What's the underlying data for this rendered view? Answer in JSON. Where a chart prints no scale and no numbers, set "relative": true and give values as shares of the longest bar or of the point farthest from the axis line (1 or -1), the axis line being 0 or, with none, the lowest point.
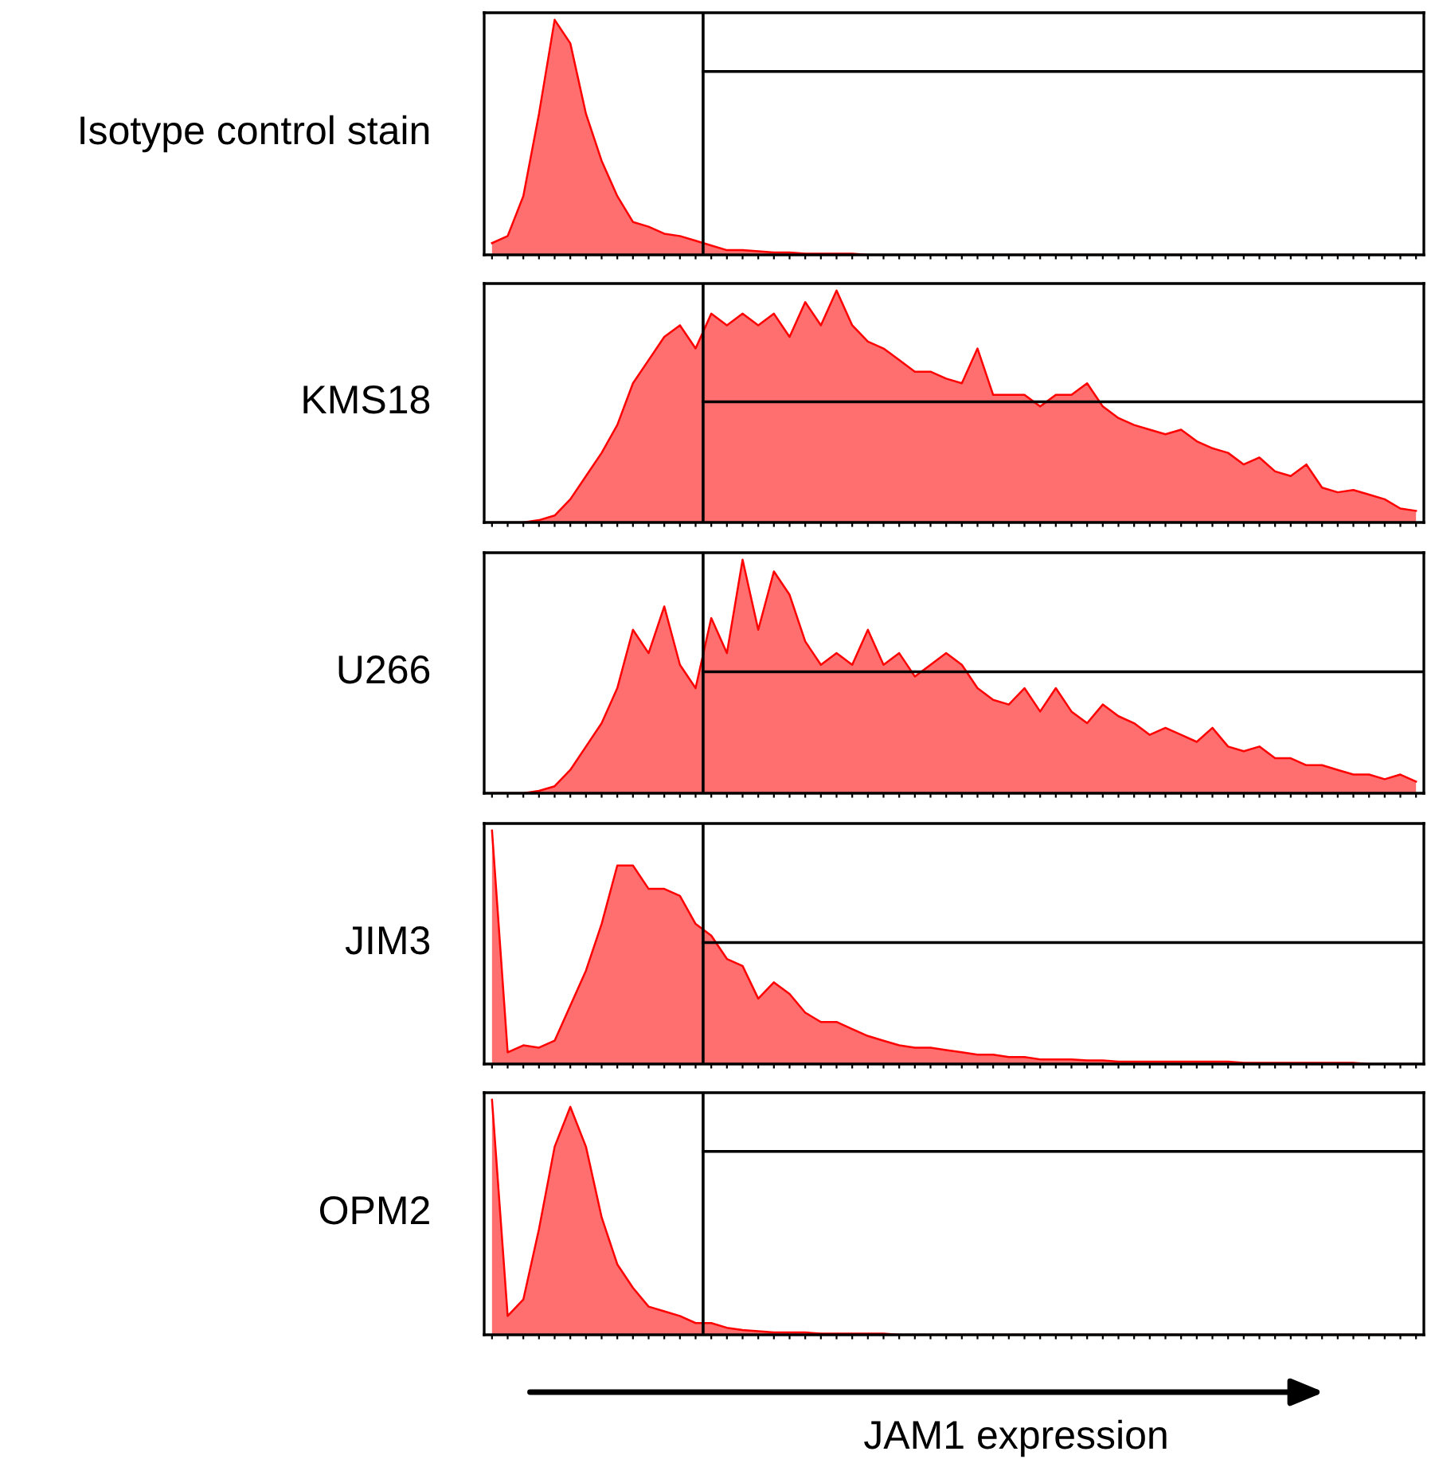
{
  "chart_data": [
    {
      "type": "area",
      "ylabel": "Isotype control stain",
      "relative": true,
      "grid": false,
      "legend": false,
      "ref_lines": [
        {
          "axis": "y",
          "value": 0.78,
          "color": "#000000"
        }
      ],
      "categories": [
        null,
        null,
        null,
        null,
        null,
        null,
        null,
        null,
        null,
        null,
        null,
        null,
        null,
        null,
        null,
        null,
        null,
        null,
        null,
        null,
        null,
        null,
        null,
        null,
        null,
        null,
        null,
        null,
        null,
        null,
        null,
        null,
        null,
        null,
        null,
        null,
        null,
        null,
        null,
        null,
        null,
        null,
        null,
        null,
        null,
        null,
        null,
        null,
        null,
        null,
        null,
        null,
        null,
        null,
        null,
        null,
        null,
        null,
        null,
        null
      ],
      "series": [
        {
          "color": "#ff6f6f",
          "values": [
            0.05,
            0.08,
            0.25,
            0.6,
            1.0,
            0.9,
            0.6,
            0.4,
            0.25,
            0.14,
            0.12,
            0.09,
            0.08,
            0.06,
            0.04,
            0.02,
            0.02,
            0.015,
            0.01,
            0.01,
            0.005,
            0.005,
            0.005,
            0.005,
            0,
            0,
            0,
            0,
            0,
            0,
            0,
            0,
            0,
            0,
            0,
            0,
            0,
            0,
            0,
            0,
            0,
            0,
            0,
            0,
            0,
            0,
            0,
            0,
            0,
            0,
            0,
            0,
            0,
            0,
            0,
            0,
            0,
            0,
            0,
            0
          ]
        }
      ]
    },
    {
      "type": "area",
      "ylabel": "KMS18",
      "relative": true,
      "grid": false,
      "legend": false,
      "ref_lines": [
        {
          "axis": "y",
          "value": 0.52,
          "color": "#000000"
        }
      ],
      "categories": [
        null,
        null,
        null,
        null,
        null,
        null,
        null,
        null,
        null,
        null,
        null,
        null,
        null,
        null,
        null,
        null,
        null,
        null,
        null,
        null,
        null,
        null,
        null,
        null,
        null,
        null,
        null,
        null,
        null,
        null,
        null,
        null,
        null,
        null,
        null,
        null,
        null,
        null,
        null,
        null,
        null,
        null,
        null,
        null,
        null,
        null,
        null,
        null,
        null,
        null,
        null,
        null,
        null,
        null,
        null,
        null,
        null,
        null,
        null,
        null
      ],
      "series": [
        {
          "color": "#ff6f6f",
          "values": [
            0,
            0,
            0,
            0.01,
            0.03,
            0.1,
            0.2,
            0.3,
            0.42,
            0.6,
            0.7,
            0.8,
            0.85,
            0.75,
            0.9,
            0.85,
            0.9,
            0.85,
            0.9,
            0.8,
            0.95,
            0.85,
            1.0,
            0.85,
            0.78,
            0.75,
            0.7,
            0.65,
            0.65,
            0.62,
            0.6,
            0.75,
            0.55,
            0.55,
            0.55,
            0.5,
            0.55,
            0.55,
            0.6,
            0.5,
            0.45,
            0.42,
            0.4,
            0.38,
            0.4,
            0.35,
            0.32,
            0.3,
            0.25,
            0.28,
            0.22,
            0.2,
            0.25,
            0.15,
            0.13,
            0.14,
            0.12,
            0.1,
            0.06,
            0.05
          ]
        }
      ]
    },
    {
      "type": "area",
      "ylabel": "U266",
      "relative": true,
      "grid": false,
      "legend": false,
      "ref_lines": [
        {
          "axis": "y",
          "value": 0.52,
          "color": "#000000"
        }
      ],
      "categories": [
        null,
        null,
        null,
        null,
        null,
        null,
        null,
        null,
        null,
        null,
        null,
        null,
        null,
        null,
        null,
        null,
        null,
        null,
        null,
        null,
        null,
        null,
        null,
        null,
        null,
        null,
        null,
        null,
        null,
        null,
        null,
        null,
        null,
        null,
        null,
        null,
        null,
        null,
        null,
        null,
        null,
        null,
        null,
        null,
        null,
        null,
        null,
        null,
        null,
        null,
        null,
        null,
        null,
        null,
        null,
        null,
        null,
        null,
        null,
        null
      ],
      "series": [
        {
          "color": "#ff6f6f",
          "values": [
            0,
            0,
            0,
            0.01,
            0.03,
            0.1,
            0.2,
            0.3,
            0.45,
            0.7,
            0.6,
            0.8,
            0.55,
            0.45,
            0.75,
            0.6,
            1.0,
            0.7,
            0.95,
            0.85,
            0.65,
            0.55,
            0.6,
            0.55,
            0.7,
            0.55,
            0.6,
            0.5,
            0.55,
            0.6,
            0.55,
            0.45,
            0.4,
            0.38,
            0.45,
            0.35,
            0.45,
            0.35,
            0.3,
            0.38,
            0.33,
            0.3,
            0.25,
            0.28,
            0.25,
            0.22,
            0.28,
            0.2,
            0.18,
            0.2,
            0.15,
            0.15,
            0.12,
            0.12,
            0.1,
            0.08,
            0.08,
            0.06,
            0.08,
            0.05
          ]
        }
      ]
    },
    {
      "type": "area",
      "ylabel": "JIM3",
      "relative": true,
      "grid": false,
      "legend": false,
      "ref_lines": [
        {
          "axis": "y",
          "value": 0.52,
          "color": "#000000"
        }
      ],
      "categories": [
        null,
        null,
        null,
        null,
        null,
        null,
        null,
        null,
        null,
        null,
        null,
        null,
        null,
        null,
        null,
        null,
        null,
        null,
        null,
        null,
        null,
        null,
        null,
        null,
        null,
        null,
        null,
        null,
        null,
        null,
        null,
        null,
        null,
        null,
        null,
        null,
        null,
        null,
        null,
        null,
        null,
        null,
        null,
        null,
        null,
        null,
        null,
        null,
        null,
        null,
        null,
        null,
        null,
        null,
        null,
        null,
        null,
        null,
        null,
        null
      ],
      "series": [
        {
          "color": "#ff6f6f",
          "values": [
            1.0,
            0.05,
            0.08,
            0.07,
            0.1,
            0.25,
            0.4,
            0.6,
            0.85,
            0.85,
            0.75,
            0.75,
            0.72,
            0.6,
            0.55,
            0.45,
            0.42,
            0.28,
            0.35,
            0.3,
            0.22,
            0.18,
            0.18,
            0.15,
            0.12,
            0.1,
            0.08,
            0.07,
            0.07,
            0.06,
            0.05,
            0.04,
            0.04,
            0.03,
            0.03,
            0.02,
            0.02,
            0.02,
            0.015,
            0.015,
            0.01,
            0.01,
            0.01,
            0.01,
            0.01,
            0.01,
            0.01,
            0.01,
            0.005,
            0.005,
            0.005,
            0.005,
            0.005,
            0.005,
            0.005,
            0.005,
            0,
            0,
            0,
            0
          ]
        }
      ]
    },
    {
      "type": "area",
      "ylabel": "OPM2",
      "xlabel": "JAM1 expression",
      "relative": true,
      "grid": false,
      "legend": false,
      "ref_lines": [
        {
          "axis": "y",
          "value": 0.78,
          "color": "#000000"
        }
      ],
      "categories": [
        null,
        null,
        null,
        null,
        null,
        null,
        null,
        null,
        null,
        null,
        null,
        null,
        null,
        null,
        null,
        null,
        null,
        null,
        null,
        null,
        null,
        null,
        null,
        null,
        null,
        null,
        null,
        null,
        null,
        null,
        null,
        null,
        null,
        null,
        null,
        null,
        null,
        null,
        null,
        null,
        null,
        null,
        null,
        null,
        null,
        null,
        null,
        null,
        null,
        null,
        null,
        null,
        null,
        null,
        null,
        null,
        null,
        null,
        null,
        null
      ],
      "series": [
        {
          "color": "#ff6f6f",
          "values": [
            1.0,
            0.08,
            0.15,
            0.45,
            0.8,
            0.97,
            0.8,
            0.5,
            0.3,
            0.2,
            0.12,
            0.1,
            0.08,
            0.05,
            0.05,
            0.03,
            0.02,
            0.015,
            0.01,
            0.01,
            0.01,
            0.005,
            0.005,
            0.005,
            0.005,
            0.005,
            0,
            0,
            0,
            0,
            0,
            0,
            0,
            0,
            0,
            0,
            0,
            0,
            0,
            0,
            0,
            0,
            0,
            0,
            0,
            0,
            0,
            0,
            0,
            0,
            0,
            0,
            0,
            0,
            0,
            0,
            0,
            0,
            0,
            0
          ]
        }
      ]
    }
  ]
}
